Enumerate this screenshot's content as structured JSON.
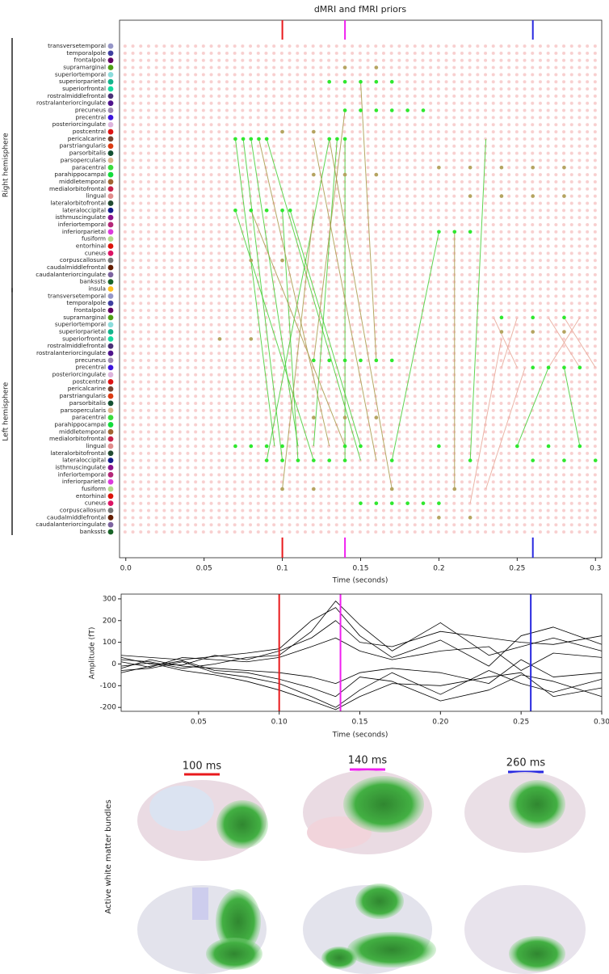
{
  "chart_data": [
    {
      "type": "dotgrid",
      "title": "dMRI and fMRI priors",
      "xlabel": "Time (seconds)",
      "xlim": [
        -0.004,
        0.304
      ],
      "xticks": [
        {
          "value": 0,
          "label": "0.0"
        },
        0.05,
        {
          "value": 0.1,
          "label": "0.1"
        },
        0.15,
        0.2,
        0.25,
        {
          "value": 0.3,
          "label": "0.3"
        }
      ],
      "markers": [
        {
          "value": 0.1,
          "color": "#e8191c"
        },
        {
          "value": 0.14,
          "color": "#f01ef0"
        },
        {
          "value": 0.26,
          "color": "#2828e0"
        }
      ],
      "groups": [
        {
          "label": "Right hemisphere",
          "rows": [
            0,
            34
          ]
        },
        {
          "label": "Left hemisphere",
          "rows": [
            35,
            68
          ]
        }
      ],
      "categories": [
        "transversetemporal",
        "temporalpole",
        "frontalpole",
        "supramarginal",
        "superiortemporal",
        "superiorparietal",
        "superiorfrontal",
        "rostralmiddlefrontal",
        "rostralanteriorcingulate",
        "precuneus",
        "precentral",
        "posteriorcingulate",
        "postcentral",
        "pericalcarine",
        "parstriangularis",
        "parsorbitalis",
        "parsopercularis",
        "paracentral",
        "parahippocampal",
        "middletemporal",
        "medialorbitofrontal",
        "lingual",
        "lateralorbitofrontal",
        "lateraloccipital",
        "isthmuscingulate",
        "inferiortemporal",
        "inferiorparietal",
        "fusiform",
        "entorhinal",
        "cuneus",
        "corpuscallosum",
        "caudalmiddlefrontal",
        "caudalanteriorcingulate",
        "bankssts",
        "insula",
        "transversetemporal",
        "temporalpole",
        "frontalpole",
        "supramarginal",
        "superiortemporal",
        "superiorparietal",
        "superiorfrontal",
        "rostralmiddlefrontal",
        "rostralanteriorcingulate",
        "precuneus",
        "precentral",
        "posteriorcingulate",
        "postcentral",
        "pericalcarine",
        "parstriangularis",
        "parsorbitalis",
        "parsopercularis",
        "paracentral",
        "parahippocampal",
        "middletemporal",
        "medialorbitofrontal",
        "lingual",
        "lateralorbitofrontal",
        "lateraloccipital",
        "isthmuscingulate",
        "inferiortemporal",
        "inferiorparietal",
        "fusiform",
        "entorhinal",
        "cuneus",
        "corpuscallosum",
        "caudalmiddlefrontal",
        "caudalanteriorcingulate",
        "bankssts"
      ],
      "row_colors": [
        "#9696c8",
        "#4040a0",
        "#640064",
        "#50a014",
        "#8cdcdc",
        "#14b48c",
        "#14dca0",
        "#4b3278",
        "#50148c",
        "#a08cb4",
        "#3c14dc",
        "#dcb4dc",
        "#dc1414",
        "#784632",
        "#dc3c14",
        "#145032",
        "#dcb48c",
        "#3cdc3c",
        "#14dc3c",
        "#a06432",
        "#c8234b",
        "#e18c8c",
        "#234b32",
        "#141e8c",
        "#8c148c",
        "#b42878",
        "#dc3cdc",
        "#b4dc8c",
        "#dc140a",
        "#dc1464",
        "#787878",
        "#641e00",
        "#7d64a0",
        "#196428",
        "#ffc020",
        "#9696c8",
        "#4040a0",
        "#640064",
        "#50a014",
        "#8cdcdc",
        "#14b48c",
        "#14dca0",
        "#4b3278",
        "#50148c",
        "#a08cb4",
        "#3c14dc",
        "#dcb4dc",
        "#dc1414",
        "#784632",
        "#dc3c14",
        "#145032",
        "#dcb48c",
        "#3cdc3c",
        "#14dc3c",
        "#a06432",
        "#c8234b",
        "#e18c8c",
        "#234b32",
        "#141e8c",
        "#8c148c",
        "#b42878",
        "#dc3cdc",
        "#b4dc8c",
        "#dc140a",
        "#dc1464",
        "#787878",
        "#641e00",
        "#7d64a0",
        "#196428"
      ],
      "dot_series": [
        {
          "color": "#2ee82e",
          "points": [
            [
              13,
              0.07
            ],
            [
              13,
              0.075
            ],
            [
              13,
              0.08
            ],
            [
              13,
              0.085
            ],
            [
              13,
              0.09
            ],
            [
              13,
              0.13
            ],
            [
              13,
              0.135
            ],
            [
              13,
              0.14
            ],
            [
              23,
              0.07
            ],
            [
              23,
              0.08
            ],
            [
              23,
              0.09
            ],
            [
              23,
              0.1
            ],
            [
              23,
              0.105
            ],
            [
              9,
              0.14
            ],
            [
              9,
              0.15
            ],
            [
              9,
              0.16
            ],
            [
              9,
              0.17
            ],
            [
              9,
              0.18
            ],
            [
              9,
              0.19
            ],
            [
              5,
              0.13
            ],
            [
              5,
              0.14
            ],
            [
              5,
              0.15
            ],
            [
              5,
              0.16
            ],
            [
              5,
              0.17
            ],
            [
              56,
              0.07
            ],
            [
              56,
              0.08
            ],
            [
              56,
              0.09
            ],
            [
              56,
              0.1
            ],
            [
              56,
              0.14
            ],
            [
              56,
              0.15
            ],
            [
              56,
              0.2
            ],
            [
              56,
              0.25
            ],
            [
              56,
              0.27
            ],
            [
              56,
              0.29
            ],
            [
              58,
              0.09
            ],
            [
              58,
              0.1
            ],
            [
              58,
              0.11
            ],
            [
              58,
              0.12
            ],
            [
              58,
              0.13
            ],
            [
              58,
              0.14
            ],
            [
              58,
              0.17
            ],
            [
              58,
              0.22
            ],
            [
              58,
              0.26
            ],
            [
              58,
              0.28
            ],
            [
              58,
              0.3
            ],
            [
              64,
              0.15
            ],
            [
              64,
              0.16
            ],
            [
              64,
              0.17
            ],
            [
              64,
              0.18
            ],
            [
              64,
              0.19
            ],
            [
              64,
              0.2
            ],
            [
              44,
              0.12
            ],
            [
              44,
              0.13
            ],
            [
              44,
              0.14
            ],
            [
              44,
              0.15
            ],
            [
              44,
              0.16
            ],
            [
              44,
              0.17
            ],
            [
              45,
              0.26
            ],
            [
              45,
              0.27
            ],
            [
              45,
              0.28
            ],
            [
              45,
              0.29
            ],
            [
              26,
              0.2
            ],
            [
              26,
              0.21
            ],
            [
              26,
              0.22
            ],
            [
              38,
              0.24
            ],
            [
              38,
              0.26
            ],
            [
              38,
              0.28
            ]
          ]
        },
        {
          "color": "#b4a460",
          "points": [
            [
              17,
              0.2
            ],
            [
              17,
              0.22
            ],
            [
              17,
              0.24
            ],
            [
              17,
              0.26
            ],
            [
              17,
              0.28
            ],
            [
              21,
              0.22
            ],
            [
              21,
              0.24
            ],
            [
              21,
              0.26
            ],
            [
              21,
              0.28
            ],
            [
              18,
              0.12
            ],
            [
              18,
              0.14
            ],
            [
              18,
              0.16
            ],
            [
              40,
              0.24
            ],
            [
              40,
              0.26
            ],
            [
              40,
              0.28
            ],
            [
              62,
              0.1
            ],
            [
              62,
              0.12
            ],
            [
              62,
              0.17
            ],
            [
              62,
              0.21
            ],
            [
              52,
              0.12
            ],
            [
              52,
              0.14
            ],
            [
              52,
              0.16
            ],
            [
              3,
              0.14
            ],
            [
              3,
              0.16
            ],
            [
              12,
              0.1
            ],
            [
              12,
              0.12
            ],
            [
              30,
              0.08
            ],
            [
              30,
              0.1
            ],
            [
              41,
              0.06
            ],
            [
              41,
              0.08
            ],
            [
              66,
              0.2
            ],
            [
              66,
              0.22
            ]
          ]
        }
      ],
      "link_series": [
        {
          "color": "#44cc33",
          "links": [
            [
              13,
              0.07,
              56,
              0.095
            ],
            [
              13,
              0.075,
              58,
              0.1
            ],
            [
              13,
              0.08,
              56,
              0.11
            ],
            [
              23,
              0.07,
              58,
              0.12
            ],
            [
              13,
              0.13,
              58,
              0.09
            ],
            [
              13,
              0.135,
              56,
              0.12
            ],
            [
              13,
              0.14,
              58,
              0.14
            ],
            [
              23,
              0.1,
              58,
              0.11
            ],
            [
              58,
              0.17,
              26,
              0.2
            ],
            [
              58,
              0.22,
              13,
              0.23
            ],
            [
              56,
              0.25,
              45,
              0.27
            ],
            [
              56,
              0.29,
              45,
              0.28
            ],
            [
              13,
              0.09,
              58,
              0.15
            ],
            [
              23,
              0.105,
              56,
              0.15
            ]
          ]
        },
        {
          "color": "#a89a4a",
          "links": [
            [
              13,
              0.085,
              56,
              0.13
            ],
            [
              23,
              0.08,
              56,
              0.14
            ],
            [
              13,
              0.12,
              58,
              0.16
            ],
            [
              23,
              0.12,
              62,
              0.1
            ],
            [
              13,
              0.13,
              62,
              0.17
            ],
            [
              26,
              0.21,
              62,
              0.21
            ],
            [
              9,
              0.14,
              44,
              0.12
            ],
            [
              5,
              0.15,
              44,
              0.16
            ]
          ]
        },
        {
          "color": "#e8a898",
          "links": [
            [
              38,
              0.235,
              45,
              0.25
            ],
            [
              38,
              0.25,
              45,
              0.24
            ],
            [
              38,
              0.27,
              45,
              0.29
            ],
            [
              38,
              0.29,
              45,
              0.27
            ],
            [
              41,
              0.24,
              64,
              0.22
            ],
            [
              45,
              0.255,
              62,
              0.23
            ],
            [
              38,
              0.28,
              45,
              0.3
            ]
          ]
        }
      ]
    },
    {
      "type": "line",
      "xlabel": "Time (seconds)",
      "ylabel": "Amplitude (fT)",
      "xlim": [
        0.002,
        0.3
      ],
      "ylim": [
        -218,
        322
      ],
      "xticks": [
        0.05,
        {
          "value": 0.1,
          "label": "0.10"
        },
        0.15,
        {
          "value": 0.2,
          "label": "0.20"
        },
        0.25,
        {
          "value": 0.3,
          "label": "0.30"
        }
      ],
      "yticks": [
        -200,
        -100,
        0,
        100,
        200,
        300
      ],
      "markers": [
        {
          "value": 0.1,
          "color": "#e8191c"
        },
        {
          "value": 0.138,
          "color": "#f01ef0"
        },
        {
          "value": 0.256,
          "color": "#2828e0"
        }
      ],
      "x": [
        0.002,
        0.02,
        0.04,
        0.06,
        0.08,
        0.1,
        0.12,
        0.135,
        0.15,
        0.17,
        0.2,
        0.23,
        0.25,
        0.27,
        0.3
      ],
      "series": [
        {
          "color": "#000000",
          "values": [
            20,
            10,
            -20,
            0,
            30,
            40,
            150,
            290,
            180,
            60,
            190,
            40,
            80,
            120,
            60
          ]
        },
        {
          "color": "#000000",
          "values": [
            -30,
            -20,
            10,
            -40,
            -60,
            -90,
            -150,
            -200,
            -120,
            -40,
            -140,
            -30,
            -90,
            -130,
            -70
          ]
        },
        {
          "color": "#000000",
          "values": [
            40,
            30,
            20,
            35,
            50,
            70,
            200,
            260,
            130,
            30,
            110,
            -10,
            130,
            170,
            90
          ]
        },
        {
          "color": "#000000",
          "values": [
            -10,
            5,
            -30,
            -50,
            -80,
            -120,
            -170,
            -210,
            -150,
            -90,
            -100,
            -60,
            -40,
            -150,
            -110
          ]
        },
        {
          "color": "#000000",
          "values": [
            10,
            -15,
            30,
            20,
            10,
            30,
            80,
            120,
            60,
            20,
            60,
            80,
            -30,
            50,
            30
          ]
        },
        {
          "color": "#000000",
          "values": [
            -20,
            20,
            -10,
            -20,
            -30,
            -40,
            -60,
            -90,
            -40,
            -20,
            -40,
            -90,
            20,
            -60,
            -40
          ]
        },
        {
          "color": "#000000",
          "values": [
            30,
            0,
            -5,
            40,
            20,
            60,
            120,
            200,
            100,
            80,
            150,
            120,
            100,
            90,
            130
          ]
        },
        {
          "color": "#000000",
          "values": [
            -40,
            -10,
            15,
            -30,
            -40,
            -70,
            -110,
            -150,
            -60,
            -80,
            -170,
            -120,
            -50,
            -80,
            -150
          ]
        }
      ]
    }
  ],
  "panels": {
    "labels": [
      "100 ms",
      "140 ms",
      "260 ms"
    ],
    "side_label": "Active white matter bundles"
  }
}
